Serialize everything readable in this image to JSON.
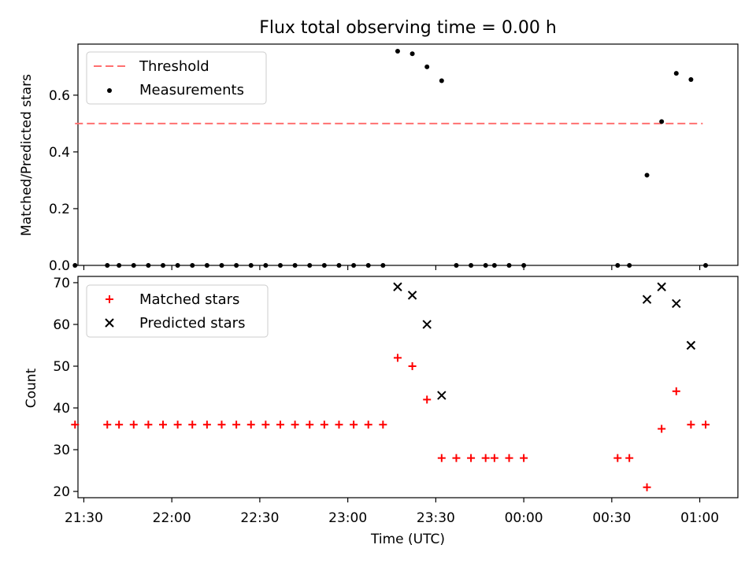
{
  "chart_data": [
    {
      "type": "scatter",
      "title": "Flux total observing time = 0.00 h",
      "xlabel": "",
      "ylabel": "Matched/Predicted stars",
      "ylim": [
        0,
        0.78
      ],
      "xlim_minutes_from_midnight": [
        -152,
        73
      ],
      "yticks": [
        0.0,
        0.2,
        0.4,
        0.6
      ],
      "ytick_labels": [
        "0.0",
        "0.2",
        "0.4",
        "0.6"
      ],
      "legend_position": "upper-left",
      "threshold": {
        "name": "Threshold",
        "value": 0.5,
        "x_start": "21:27",
        "x_end": "01:01",
        "color": "#ff7070"
      },
      "series": [
        {
          "name": "Measurements",
          "color": "#000000",
          "x": [
            "21:27",
            "21:38",
            "21:42",
            "21:47",
            "21:52",
            "21:57",
            "22:02",
            "22:07",
            "22:12",
            "22:17",
            "22:22",
            "22:27",
            "22:32",
            "22:37",
            "22:42",
            "22:47",
            "22:52",
            "22:57",
            "23:02",
            "23:07",
            "23:12",
            "23:17",
            "23:22",
            "23:27",
            "23:32",
            "23:37",
            "23:42",
            "23:47",
            "23:50",
            "23:55",
            "00:00",
            "00:32",
            "00:36",
            "00:42",
            "00:47",
            "00:52",
            "00:57",
            "01:02"
          ],
          "y": [
            0,
            0,
            0,
            0,
            0,
            0,
            0,
            0,
            0,
            0,
            0,
            0,
            0,
            0,
            0,
            0,
            0,
            0,
            0,
            0,
            0,
            0.755,
            0.746,
            0.7,
            0.651,
            0,
            0,
            0,
            0,
            0,
            0,
            0,
            0,
            0.318,
            0.507,
            0.677,
            0.655,
            0
          ]
        }
      ]
    },
    {
      "type": "scatter",
      "title": "",
      "xlabel": "Time (UTC)",
      "ylabel": "Count",
      "ylim": [
        18.5,
        71.5
      ],
      "xlim_minutes_from_midnight": [
        -152,
        73
      ],
      "yticks": [
        20,
        30,
        40,
        50,
        60,
        70
      ],
      "ytick_labels": [
        "20",
        "30",
        "40",
        "50",
        "60",
        "70"
      ],
      "xtick_labels": [
        "21:30",
        "22:00",
        "22:30",
        "23:00",
        "23:30",
        "00:00",
        "00:30",
        "01:00"
      ],
      "legend_position": "upper-left",
      "series": [
        {
          "name": "Matched stars",
          "marker": "+",
          "color": "#ff0000",
          "x": [
            "21:27",
            "21:38",
            "21:42",
            "21:47",
            "21:52",
            "21:57",
            "22:02",
            "22:07",
            "22:12",
            "22:17",
            "22:22",
            "22:27",
            "22:32",
            "22:37",
            "22:42",
            "22:47",
            "22:52",
            "22:57",
            "23:02",
            "23:07",
            "23:12",
            "23:17",
            "23:22",
            "23:27",
            "23:32",
            "23:37",
            "23:42",
            "23:47",
            "23:50",
            "23:55",
            "00:00",
            "00:32",
            "00:36",
            "00:42",
            "00:47",
            "00:52",
            "00:57",
            "01:02"
          ],
          "y": [
            36,
            36,
            36,
            36,
            36,
            36,
            36,
            36,
            36,
            36,
            36,
            36,
            36,
            36,
            36,
            36,
            36,
            36,
            36,
            36,
            36,
            52,
            50,
            42,
            28,
            28,
            28,
            28,
            28,
            28,
            28,
            28,
            28,
            21,
            35,
            44,
            36,
            36
          ]
        },
        {
          "name": "Predicted stars",
          "marker": "x",
          "color": "#000000",
          "x": [
            "23:17",
            "23:22",
            "23:27",
            "23:32",
            "00:42",
            "00:47",
            "00:52",
            "00:57"
          ],
          "y": [
            69,
            67,
            60,
            43,
            66,
            69,
            65,
            55
          ]
        }
      ]
    }
  ]
}
